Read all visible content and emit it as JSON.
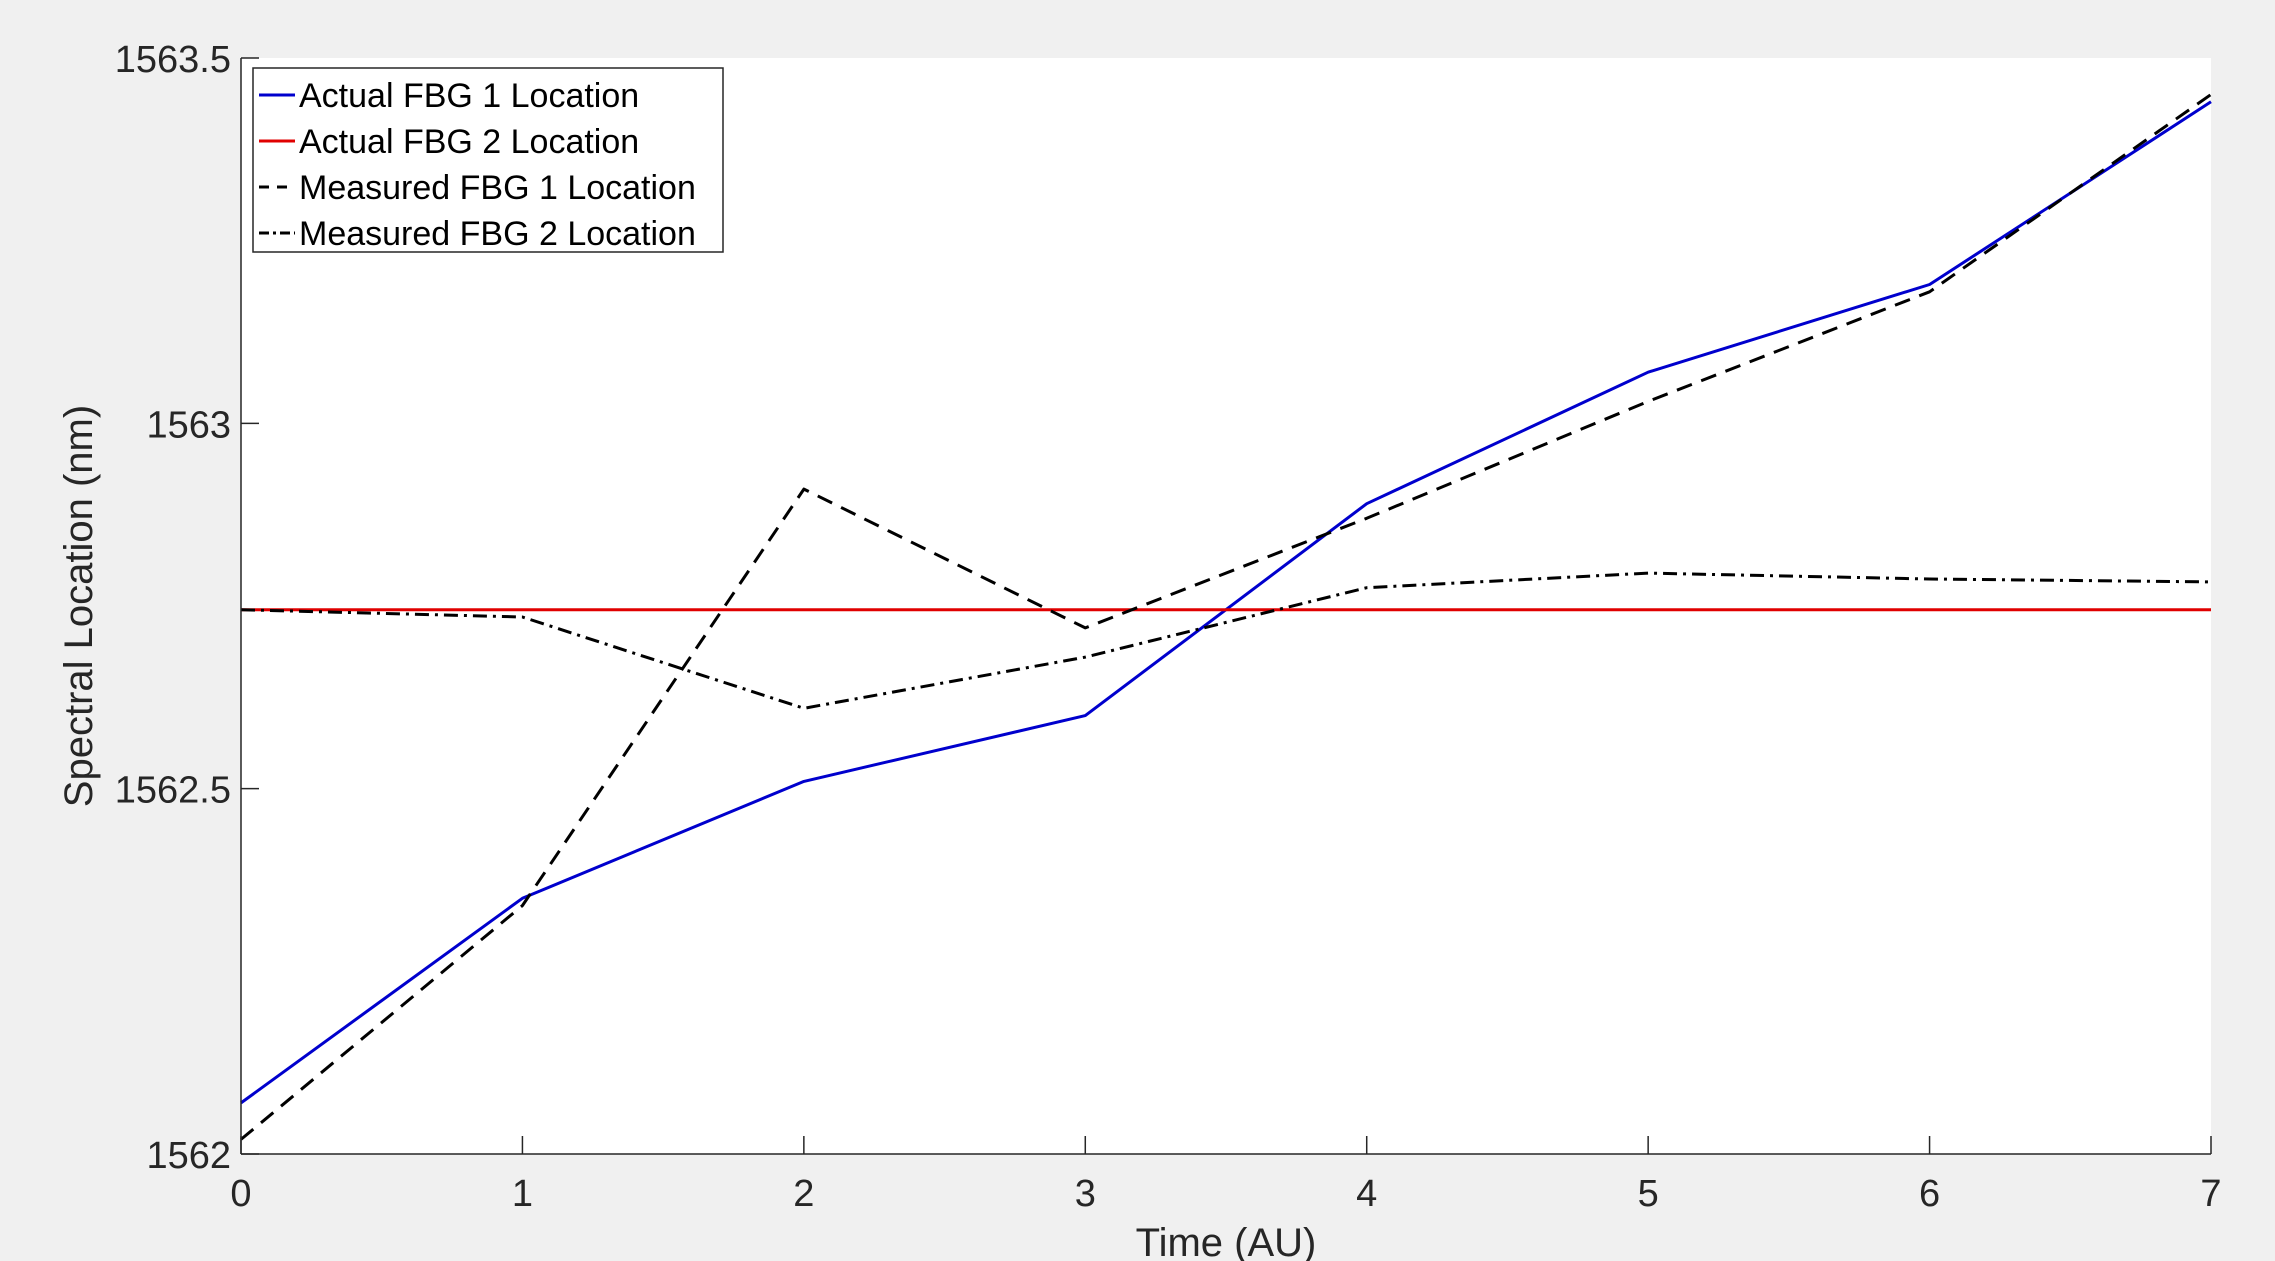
{
  "chart_data": {
    "type": "line",
    "title": "",
    "xlabel": "Time (AU)",
    "ylabel": "Spectral Location (nm)",
    "xlim": [
      0,
      7
    ],
    "ylim": [
      1562,
      1563.5
    ],
    "x": [
      0,
      1,
      2,
      3,
      4,
      5,
      6,
      7
    ],
    "xticks": [
      "0",
      "1",
      "2",
      "3",
      "4",
      "5",
      "6",
      "7"
    ],
    "yticks": [
      "1562",
      "1562.5",
      "1563",
      "1563.5"
    ],
    "ytick_values": [
      1562,
      1562.5,
      1563,
      1563.5
    ],
    "grid": false,
    "legend_position": "top-left",
    "series": [
      {
        "name": "Actual FBG 1 Location",
        "color": "#0000cd",
        "style": "solid",
        "values": [
          1562.07,
          1562.35,
          1562.51,
          1562.6,
          1562.89,
          1563.07,
          1563.19,
          1563.44
        ]
      },
      {
        "name": "Actual FBG 2 Location",
        "color": "#e00000",
        "style": "solid",
        "values": [
          1562.745,
          1562.745,
          1562.745,
          1562.745,
          1562.745,
          1562.745,
          1562.745,
          1562.745
        ]
      },
      {
        "name": "Measured FBG 1 Location",
        "color": "#000000",
        "style": "dashed",
        "values": [
          1562.02,
          1562.34,
          1562.91,
          1562.72,
          1562.87,
          1563.03,
          1563.18,
          1563.45
        ]
      },
      {
        "name": "Measured FBG 2 Location",
        "color": "#000000",
        "style": "dashdot",
        "values": [
          1562.745,
          1562.735,
          1562.61,
          1562.68,
          1562.775,
          1562.795,
          1562.787,
          1562.783
        ]
      }
    ]
  }
}
